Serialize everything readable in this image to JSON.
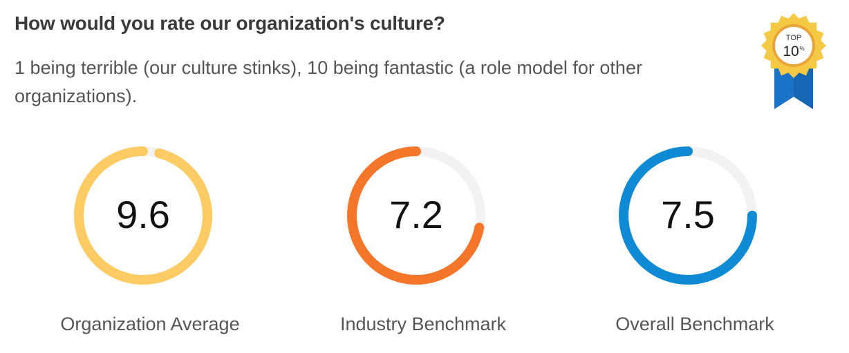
{
  "question": {
    "title": "How would you rate our organization's culture?",
    "subtitle": "1 being terrible (our culture stinks), 10 being fantastic (a role model for other organizations)."
  },
  "badge": {
    "top_text": "TOP",
    "value_text": "10",
    "percent_text": "%",
    "ribbon_color": "#1a73c6",
    "seal_color": "#f6c945"
  },
  "chart_data": {
    "type": "gauge",
    "scale": [
      0,
      10
    ],
    "track_color": "#f2f2f2",
    "gauges": [
      {
        "label": "Organization Average",
        "value": 9.6,
        "display": "9.6",
        "color": "#fdcb63"
      },
      {
        "label": "Industry Benchmark",
        "value": 7.2,
        "display": "7.2",
        "color": "#f4762b"
      },
      {
        "label": "Overall Benchmark",
        "value": 7.5,
        "display": "7.5",
        "color": "#0e8bd4"
      }
    ]
  }
}
